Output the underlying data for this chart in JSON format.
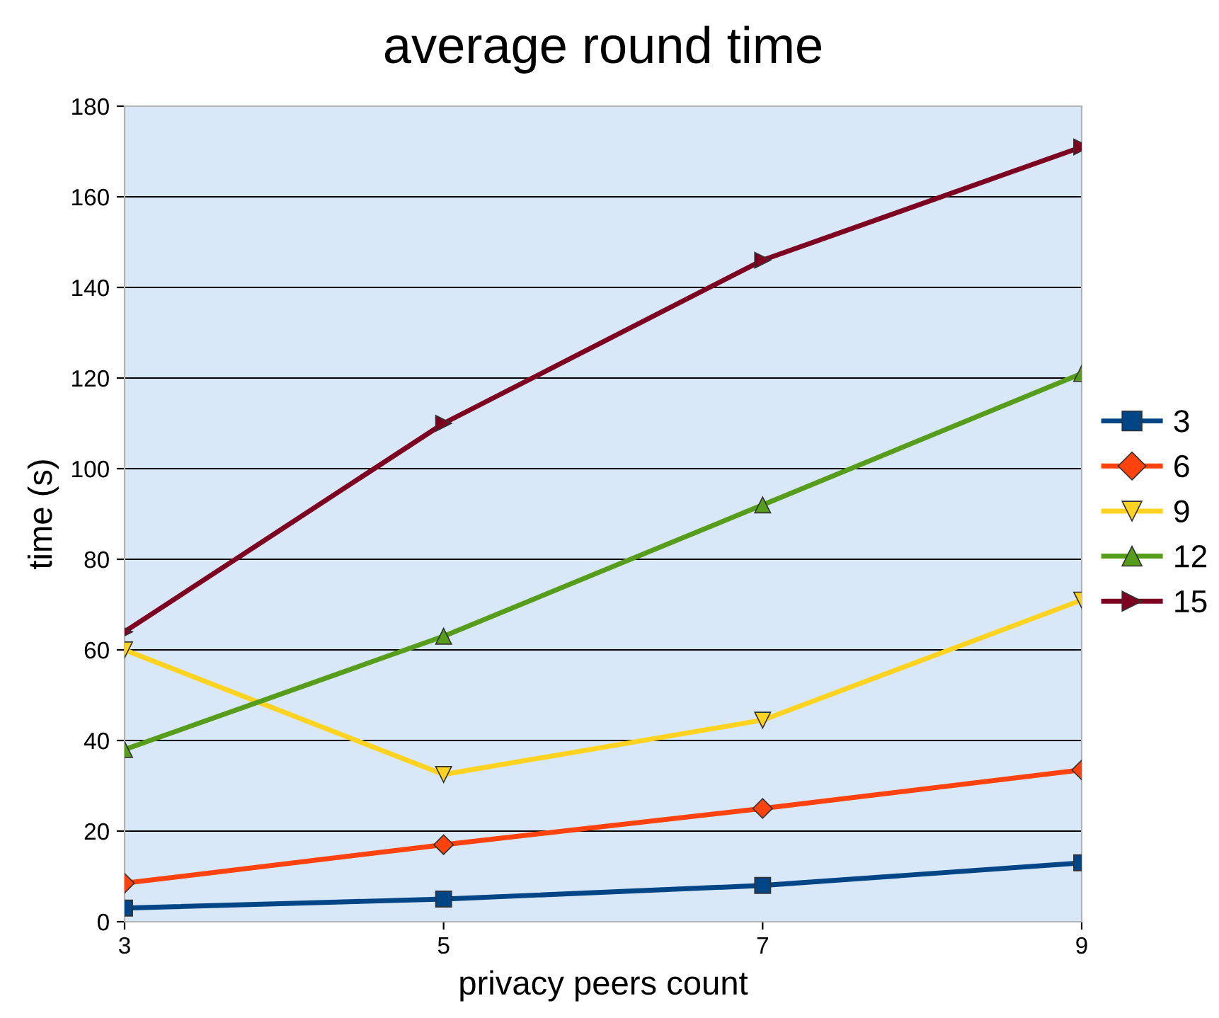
{
  "chart_data": {
    "type": "line",
    "title": "average round time",
    "xlabel": "privacy peers count",
    "ylabel": "time (s)",
    "x": [
      3,
      5,
      7,
      9
    ],
    "series": [
      {
        "name": "3",
        "color": "#004586",
        "marker": "square",
        "values": [
          3,
          5,
          8,
          13
        ]
      },
      {
        "name": "6",
        "color": "#ff420e",
        "marker": "diamond",
        "values": [
          8.5,
          17,
          25,
          33.5
        ]
      },
      {
        "name": "9",
        "color": "#ffd320",
        "marker": "triangle_down",
        "values": [
          60,
          32.5,
          44.5,
          71
        ]
      },
      {
        "name": "12",
        "color": "#579d1c",
        "marker": "triangle",
        "values": [
          38,
          63,
          92,
          121
        ]
      },
      {
        "name": "15",
        "color": "#7e0021",
        "marker": "triangle_right",
        "values": [
          64,
          110,
          146,
          171
        ]
      }
    ],
    "xlim": [
      3,
      9
    ],
    "xticks": [
      3,
      5,
      7,
      9
    ],
    "ylim": [
      0,
      180
    ],
    "yticks": [
      0,
      20,
      40,
      60,
      80,
      100,
      120,
      140,
      160,
      180
    ],
    "grid": "y",
    "legend": "right",
    "line_style": "solid"
  }
}
